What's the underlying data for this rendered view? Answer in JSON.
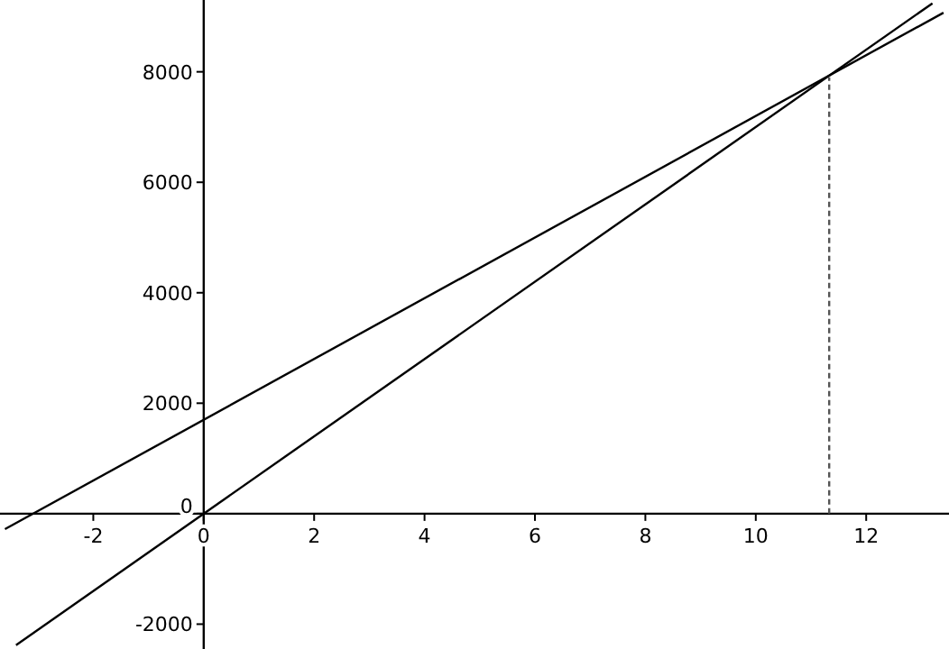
{
  "chart_data": {
    "type": "line",
    "xlim": [
      -3.69,
      13.5
    ],
    "ylim": [
      -2450,
      9300
    ],
    "xticks": [
      -2,
      0,
      2,
      4,
      6,
      8,
      10,
      12
    ],
    "yticks": [
      -2000,
      0,
      2000,
      4000,
      6000,
      8000
    ],
    "grid": false,
    "marker": "none",
    "series": [
      {
        "color": "#000000",
        "x": [
          -3.4,
          13.2
        ],
        "values": [
          -2380,
          9240
        ],
        "line_style": "solid"
      },
      {
        "color": "#000000",
        "x": [
          -3.6,
          13.4
        ],
        "values": [
          -280,
          9070
        ],
        "line_style": "solid"
      },
      {
        "color": "#555555",
        "x": [
          11.33,
          11.33
        ],
        "values": [
          0,
          7900
        ],
        "line_style": "dashed"
      }
    ]
  }
}
